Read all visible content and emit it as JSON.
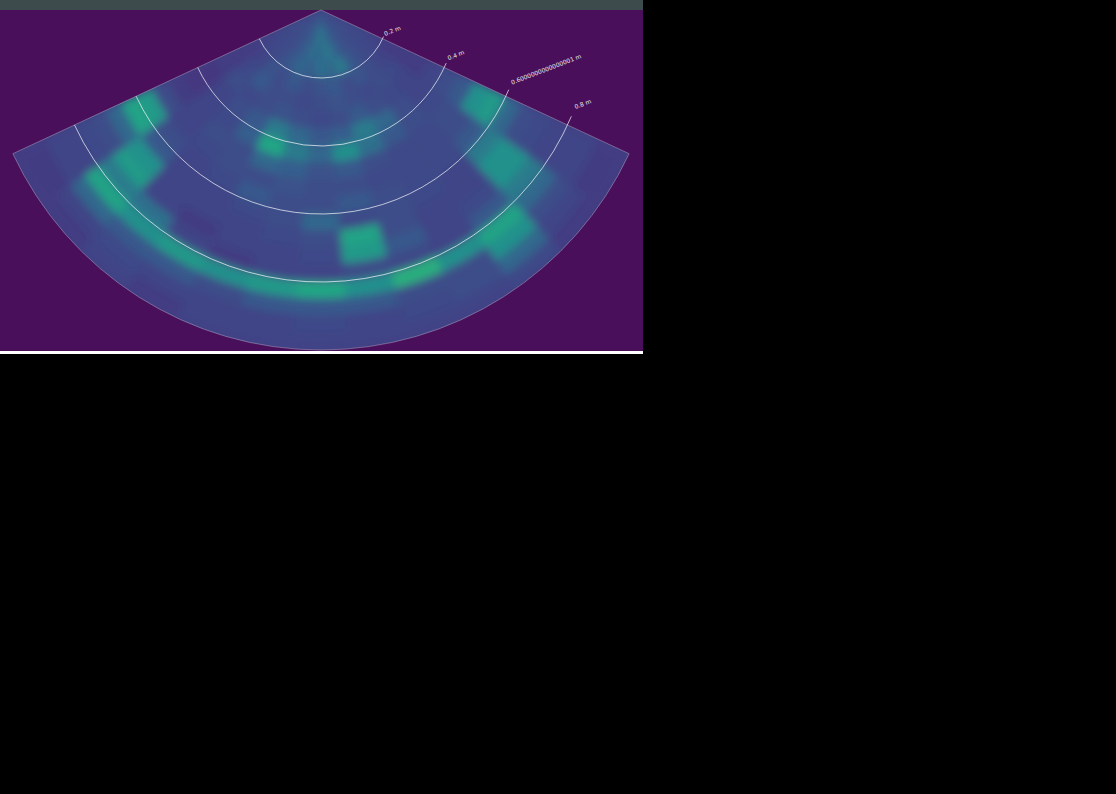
{
  "chart_data": {
    "type": "polar_heatmap",
    "xlim": [
      -65,
      65
    ],
    "ylim": [
      0,
      1
    ],
    "yticks": [
      {
        "value": 0.2,
        "label": "0.2 m"
      },
      {
        "value": 0.4,
        "label": "0.4 m"
      },
      {
        "value": 0.6000000000000001,
        "label": "0.6000000000000001 m"
      },
      {
        "value": 0.8,
        "label": "0.8 m"
      }
    ],
    "tick_labels": "y",
    "clim": [
      0,
      1
    ],
    "cells": [
      [
        0.3,
        0.3,
        0.3,
        0.3,
        0.3,
        0.35,
        0.4,
        0.35,
        0.3,
        0.3,
        0.3,
        0.3,
        0.3
      ],
      [
        0.3,
        0.3,
        0.3,
        0.32,
        0.35,
        0.4,
        0.45,
        0.4,
        0.35,
        0.32,
        0.3,
        0.3,
        0.3
      ],
      [
        0.28,
        0.28,
        0.3,
        0.32,
        0.38,
        0.42,
        0.4,
        0.45,
        0.38,
        0.32,
        0.3,
        0.28,
        0.28
      ],
      [
        0.25,
        0.27,
        0.3,
        0.35,
        0.4,
        0.38,
        0.42,
        0.4,
        0.45,
        0.35,
        0.3,
        0.27,
        0.25
      ],
      [
        0.22,
        0.25,
        0.32,
        0.3,
        0.35,
        0.3,
        0.32,
        0.35,
        0.3,
        0.33,
        0.3,
        0.25,
        0.22
      ],
      [
        0.22,
        0.28,
        0.35,
        0.3,
        0.3,
        0.28,
        0.3,
        0.32,
        0.3,
        0.28,
        0.3,
        0.28,
        0.22
      ],
      [
        0.22,
        0.3,
        0.28,
        0.3,
        0.32,
        0.3,
        0.28,
        0.3,
        0.35,
        0.3,
        0.28,
        0.25,
        0.22
      ],
      [
        0.2,
        0.25,
        0.3,
        0.35,
        0.45,
        0.4,
        0.35,
        0.38,
        0.45,
        0.4,
        0.3,
        0.25,
        0.25
      ],
      [
        0.2,
        0.25,
        0.28,
        0.38,
        0.62,
        0.45,
        0.4,
        0.5,
        0.42,
        0.35,
        0.3,
        0.28,
        0.3
      ],
      [
        0.22,
        0.25,
        0.3,
        0.3,
        0.4,
        0.38,
        0.32,
        0.35,
        0.3,
        0.28,
        0.28,
        0.3,
        0.35
      ],
      [
        0.3,
        0.25,
        0.28,
        0.3,
        0.3,
        0.32,
        0.3,
        0.3,
        0.28,
        0.28,
        0.28,
        0.3,
        0.5
      ],
      [
        0.55,
        0.3,
        0.25,
        0.28,
        0.35,
        0.3,
        0.3,
        0.35,
        0.3,
        0.28,
        0.28,
        0.35,
        0.55
      ],
      [
        0.6,
        0.35,
        0.25,
        0.25,
        0.28,
        0.3,
        0.4,
        0.28,
        0.3,
        0.28,
        0.25,
        0.45,
        0.4
      ],
      [
        0.4,
        0.5,
        0.25,
        0.25,
        0.25,
        0.28,
        0.3,
        0.6,
        0.3,
        0.25,
        0.25,
        0.5,
        0.3
      ],
      [
        0.3,
        0.55,
        0.25,
        0.22,
        0.25,
        0.25,
        0.28,
        0.55,
        0.35,
        0.25,
        0.28,
        0.5,
        0.28
      ],
      [
        0.28,
        0.45,
        0.42,
        0.25,
        0.22,
        0.25,
        0.25,
        0.3,
        0.28,
        0.25,
        0.35,
        0.45,
        0.25
      ],
      [
        0.25,
        0.6,
        0.5,
        0.55,
        0.5,
        0.55,
        0.62,
        0.5,
        0.65,
        0.5,
        0.6,
        0.4,
        0.25
      ],
      [
        0.25,
        0.4,
        0.35,
        0.35,
        0.3,
        0.35,
        0.35,
        0.35,
        0.3,
        0.3,
        0.5,
        0.3,
        0.25
      ],
      [
        0.22,
        0.25,
        0.28,
        0.25,
        0.25,
        0.25,
        0.28,
        0.25,
        0.28,
        0.3,
        0.4,
        0.25,
        0.22
      ],
      [
        0.22,
        0.22,
        0.25,
        0.22,
        0.25,
        0.25,
        0.25,
        0.25,
        0.25,
        0.25,
        0.28,
        0.22,
        0.22
      ]
    ]
  }
}
